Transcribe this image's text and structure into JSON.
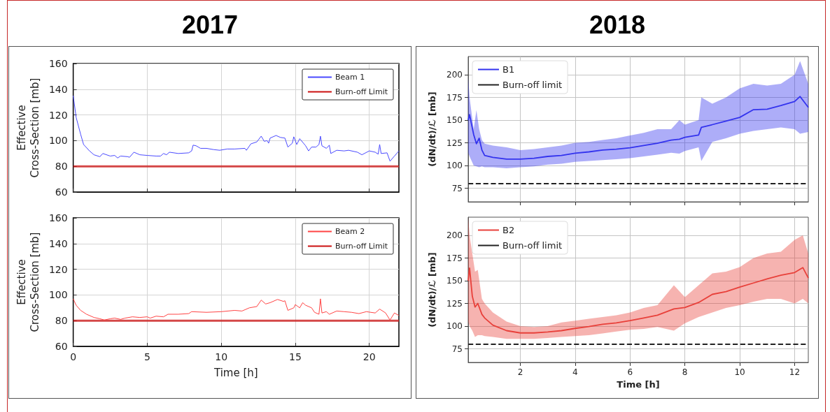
{
  "chart_data": [
    {
      "type": "line",
      "title": "2017",
      "ylabel": "Effective\nCross-Section [mb]",
      "xlim": [
        0,
        22
      ],
      "xticks": [
        0,
        5,
        10,
        15,
        20
      ],
      "ylim": [
        60,
        160
      ],
      "yticks": [
        60,
        80,
        100,
        120,
        140,
        160
      ],
      "grid": true,
      "legend": "top right",
      "tick_labels": "y",
      "series": [
        {
          "name": "Beam 1",
          "color": "#4a4aff",
          "x": [
            0,
            0.2,
            0.5,
            0.7,
            1.1,
            1.4,
            1.8,
            2.0,
            2.5,
            2.8,
            3.0,
            3.2,
            3.7,
            3.8,
            4.1,
            4.5,
            5.0,
            5.6,
            5.9,
            6.1,
            6.3,
            6.5,
            7.1,
            7.8,
            8.0,
            8.1,
            8.3,
            8.6,
            9.0,
            9.5,
            9.9,
            10.4,
            10.9,
            11.6,
            11.7,
            12.0,
            12.4,
            12.7,
            12.9,
            13.1,
            13.2,
            13.3,
            13.7,
            14.0,
            14.3,
            14.5,
            14.8,
            14.9,
            15.1,
            15.3,
            15.7,
            15.9,
            16.1,
            16.4,
            16.6,
            16.7,
            16.8,
            17.1,
            17.3,
            17.4,
            17.8,
            18.3,
            18.6,
            19.2,
            19.5,
            20.0,
            20.4,
            20.6,
            20.7,
            20.8,
            21.2,
            21.4,
            21.7,
            22.0
          ],
          "values": [
            135,
            118,
            105,
            97,
            92,
            89,
            87.5,
            90,
            88,
            88.5,
            86.5,
            88,
            87.5,
            87,
            91,
            89,
            88.5,
            88,
            88,
            90,
            89,
            91,
            90,
            90.5,
            92,
            96.5,
            96,
            94,
            94,
            93,
            92.5,
            93.5,
            93.5,
            94,
            92.5,
            97.5,
            99,
            103.5,
            99.5,
            100,
            98,
            102,
            104,
            102.5,
            102,
            95,
            98,
            103,
            97,
            101.5,
            96,
            92,
            95,
            95,
            97,
            103.5,
            96,
            94,
            96.5,
            90,
            92.5,
            92,
            92.5,
            91,
            89,
            92,
            91,
            89.5,
            97,
            90,
            90.5,
            84,
            88,
            92
          ]
        }
      ],
      "ref_lines": [
        {
          "axis": "y",
          "value": 80,
          "label": "Burn-off Limit",
          "color": "#cc1111"
        }
      ]
    },
    {
      "type": "line",
      "title": "2018",
      "ylabel": "(dN/dt)/ℒ [mb]",
      "xlim": [
        0.1,
        12.5
      ],
      "xticks": [
        2,
        4,
        6,
        8,
        10,
        12
      ],
      "ylim": [
        60,
        220
      ],
      "yticks": [
        75,
        100,
        125,
        150,
        175,
        200
      ],
      "grid": true,
      "legend": "top left",
      "tick_labels": "y",
      "series": [
        {
          "name": "B1",
          "color": "#3333ee",
          "x": [
            0.1,
            0.15,
            0.3,
            0.4,
            0.5,
            0.6,
            0.7,
            1,
            1.5,
            2,
            2.5,
            3,
            3.5,
            4,
            4.5,
            5,
            5.5,
            6,
            6.5,
            7,
            7.5,
            7.8,
            8,
            8.5,
            8.6,
            9,
            9.5,
            10,
            10.5,
            11,
            11.5,
            12,
            12.2,
            12.5
          ],
          "values": [
            150,
            156,
            134,
            124,
            130,
            117,
            111,
            109,
            107,
            107,
            108,
            110,
            111,
            113.5,
            115,
            117,
            118,
            119.5,
            122,
            124.5,
            128,
            129,
            131,
            133.5,
            142,
            145,
            149,
            153,
            161.5,
            162,
            166,
            170.5,
            176,
            164
          ],
          "lower": [
            114,
            110,
            100,
            99,
            98,
            99,
            98,
            98,
            97,
            98,
            99,
            101,
            102,
            104,
            105,
            106,
            107,
            108,
            110,
            112,
            114,
            113,
            116,
            120,
            105,
            126,
            130,
            135,
            138,
            140,
            142,
            140,
            135,
            137
          ],
          "upper": [
            197,
            175,
            140,
            161,
            140,
            128,
            124,
            122,
            120,
            117,
            118,
            120,
            122,
            125,
            126,
            128,
            130,
            133,
            136,
            140,
            140,
            150,
            145,
            150,
            175,
            168,
            175,
            185,
            190,
            188,
            190,
            200,
            215,
            190
          ]
        }
      ],
      "ref_lines": [
        {
          "axis": "y",
          "value": 80,
          "label": "Burn-off limit",
          "color": "#222222",
          "line_style": "dashed"
        }
      ]
    },
    {
      "type": "line",
      "xlabel": "Time [h]",
      "ylabel": "Effective\nCross-Section [mb]",
      "xlim": [
        0,
        22
      ],
      "xticks": [
        0,
        5,
        10,
        15,
        20
      ],
      "ylim": [
        60,
        160
      ],
      "yticks": [
        60,
        80,
        100,
        120,
        140,
        160
      ],
      "grid": true,
      "legend": "top right",
      "series": [
        {
          "name": "Beam 2",
          "color": "#ff4444",
          "x": [
            0,
            0.2,
            0.5,
            0.9,
            1.4,
            1.8,
            2.1,
            2.5,
            2.8,
            3.2,
            3.5,
            4.0,
            4.5,
            5.0,
            5.2,
            5.6,
            6.1,
            6.4,
            7.1,
            7.8,
            8.0,
            9.0,
            10.0,
            10.9,
            11.4,
            11.9,
            12.4,
            12.7,
            13.0,
            13.3,
            13.8,
            14.2,
            14.3,
            14.5,
            14.9,
            15.0,
            15.3,
            15.5,
            15.7,
            16.1,
            16.3,
            16.6,
            16.7,
            16.8,
            17.1,
            17.3,
            17.8,
            18.3,
            18.8,
            19.3,
            19.8,
            20.4,
            20.7,
            21.1,
            21.4,
            21.7,
            22.0
          ],
          "values": [
            97,
            92,
            88,
            85,
            82.5,
            81.5,
            80.5,
            81.5,
            82,
            81,
            82,
            83,
            82.5,
            83,
            82,
            83.5,
            83,
            85,
            85,
            85.5,
            87,
            86.5,
            87,
            88,
            87.5,
            90,
            91,
            96,
            93,
            94,
            96.5,
            95,
            95.5,
            88,
            90,
            92.5,
            90,
            94,
            92,
            90,
            86.5,
            85,
            97,
            86,
            87,
            85,
            87.5,
            87,
            86.5,
            85.5,
            87,
            86,
            89,
            86,
            80.5,
            86,
            84
          ]
        }
      ],
      "ref_lines": [
        {
          "axis": "y",
          "value": 80,
          "label": "Burn-off Limit",
          "color": "#cc1111"
        }
      ]
    },
    {
      "type": "line",
      "xlabel": "Time [h]",
      "ylabel": "(dN/dt)/ℒ [mb]",
      "xlim": [
        0.1,
        12.5
      ],
      "xticks": [
        2,
        4,
        6,
        8,
        10,
        12
      ],
      "ylim": [
        60,
        220
      ],
      "yticks": [
        75,
        100,
        125,
        150,
        175,
        200
      ],
      "grid": true,
      "legend": "top left",
      "series": [
        {
          "name": "B2",
          "color": "#e8403a",
          "x": [
            0.1,
            0.15,
            0.25,
            0.35,
            0.45,
            0.6,
            0.7,
            1,
            1.5,
            2,
            2.5,
            3,
            3.5,
            4,
            4.5,
            5,
            5.5,
            6,
            6.5,
            7,
            7.6,
            8,
            8.5,
            9,
            9.5,
            10,
            10.5,
            11,
            11.5,
            12,
            12.3,
            12.5
          ],
          "values": [
            150,
            164,
            133,
            121,
            125,
            113,
            109,
            101,
            95,
            92.5,
            92.5,
            93.5,
            95,
            97.5,
            99.5,
            102,
            103.5,
            106,
            109,
            112,
            119,
            120.5,
            126,
            135,
            138,
            143,
            147.5,
            152,
            156,
            159,
            164.5,
            153
          ],
          "lower": [
            105,
            100,
            95,
            88,
            90,
            90,
            89,
            88,
            86,
            86,
            86,
            87,
            88,
            89,
            90,
            92,
            94,
            96,
            97,
            99,
            95,
            103,
            110,
            115,
            120,
            123,
            127,
            130,
            130,
            125,
            130,
            125
          ],
          "upper": [
            220,
            200,
            180,
            160,
            162,
            130,
            125,
            115,
            105,
            100,
            99,
            100,
            104,
            106,
            108,
            110,
            112,
            115,
            120,
            123,
            145,
            132,
            145,
            158,
            160,
            165,
            175,
            180,
            182,
            195,
            200,
            180
          ]
        }
      ],
      "ref_lines": [
        {
          "axis": "y",
          "value": 80,
          "label": "Burn-off limit",
          "color": "#222222",
          "line_style": "dashed"
        }
      ]
    }
  ]
}
